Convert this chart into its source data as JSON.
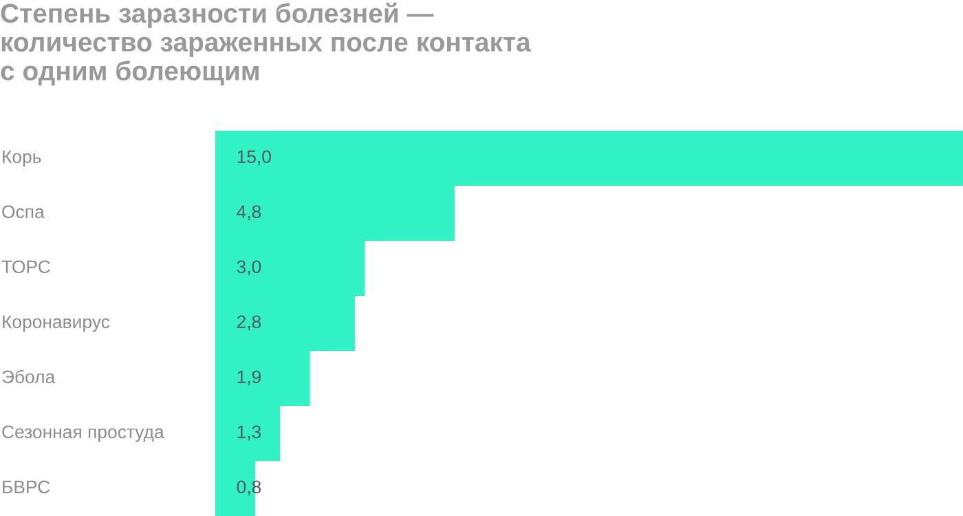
{
  "chart_data": {
    "type": "bar",
    "orientation": "horizontal",
    "title": "Степень заразности болезней —\nколичество зараженных после контакта\nс одним болеющим",
    "categories": [
      "Корь",
      "Оспа",
      "ТОРС",
      "Коронавирус",
      "Эбола",
      "Сезонная простуда",
      "БВРС"
    ],
    "values": [
      15.0,
      4.8,
      3.0,
      2.8,
      1.9,
      1.3,
      0.8
    ],
    "value_labels": [
      "15,0",
      "4,8",
      "3,0",
      "2,8",
      "1,9",
      "1,3",
      "0,8"
    ],
    "color": "#30f2c4",
    "xlim": [
      0,
      15
    ],
    "tick_labels": "y"
  }
}
